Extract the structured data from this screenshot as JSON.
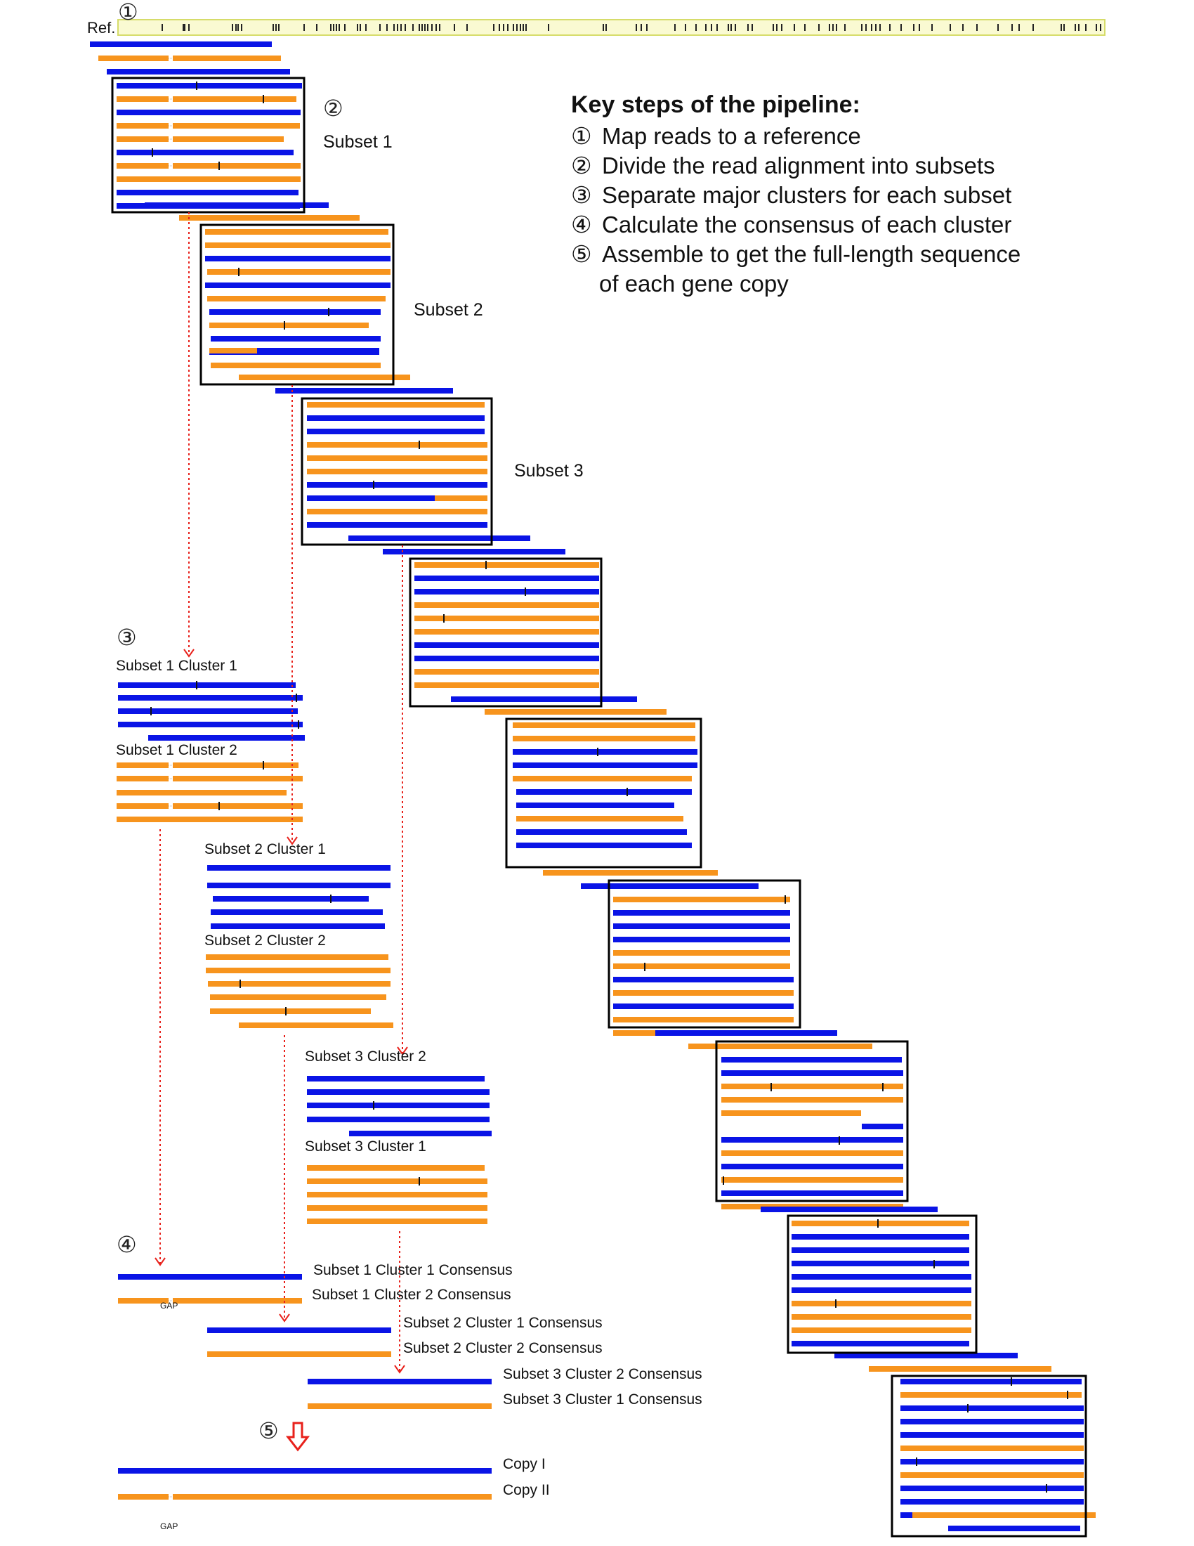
{
  "reference_label": "Ref.",
  "step_markers": [
    "①",
    "②",
    "③",
    "④",
    "⑤"
  ],
  "legend": {
    "title": "Key steps of the pipeline:",
    "steps": [
      {
        "num": "①",
        "text": "Map reads to a reference"
      },
      {
        "num": "②",
        "text": "Divide the read alignment into subsets"
      },
      {
        "num": "③",
        "text": "Separate major clusters for each subset"
      },
      {
        "num": "④",
        "text": "Calculate the consensus of each cluster"
      },
      {
        "num": "⑤",
        "text": "Assemble to get the full-length sequence"
      }
    ],
    "continuation": "of each gene copy"
  },
  "subset_labels": [
    "Subset 1",
    "Subset 2",
    "Subset 3"
  ],
  "cluster_labels": {
    "s1c1": "Subset 1 Cluster 1",
    "s1c2": "Subset 1 Cluster 2",
    "s2c1": "Subset 2 Cluster 1",
    "s2c2": "Subset 2 Cluster 2",
    "s3c2": "Subset 3 Cluster 2",
    "s3c1": "Subset 3 Cluster 1"
  },
  "consensus_labels": [
    "Subset 1 Cluster 1 Consensus",
    "Subset 1 Cluster 2 Consensus",
    "Subset 2 Cluster 1 Consensus",
    "Subset 2 Cluster 2 Consensus",
    "Subset 3 Cluster 2 Consensus",
    "Subset 3 Cluster 1 Consensus"
  ],
  "gap_label": "GAP",
  "copy_labels": [
    "Copy I",
    "Copy II"
  ],
  "colors": {
    "blue": "#0a14e6",
    "orange": "#f7941d",
    "arrow_red": "#e8211b",
    "ref_band": "#fafad2",
    "ref_border": "#d6dc6a"
  }
}
